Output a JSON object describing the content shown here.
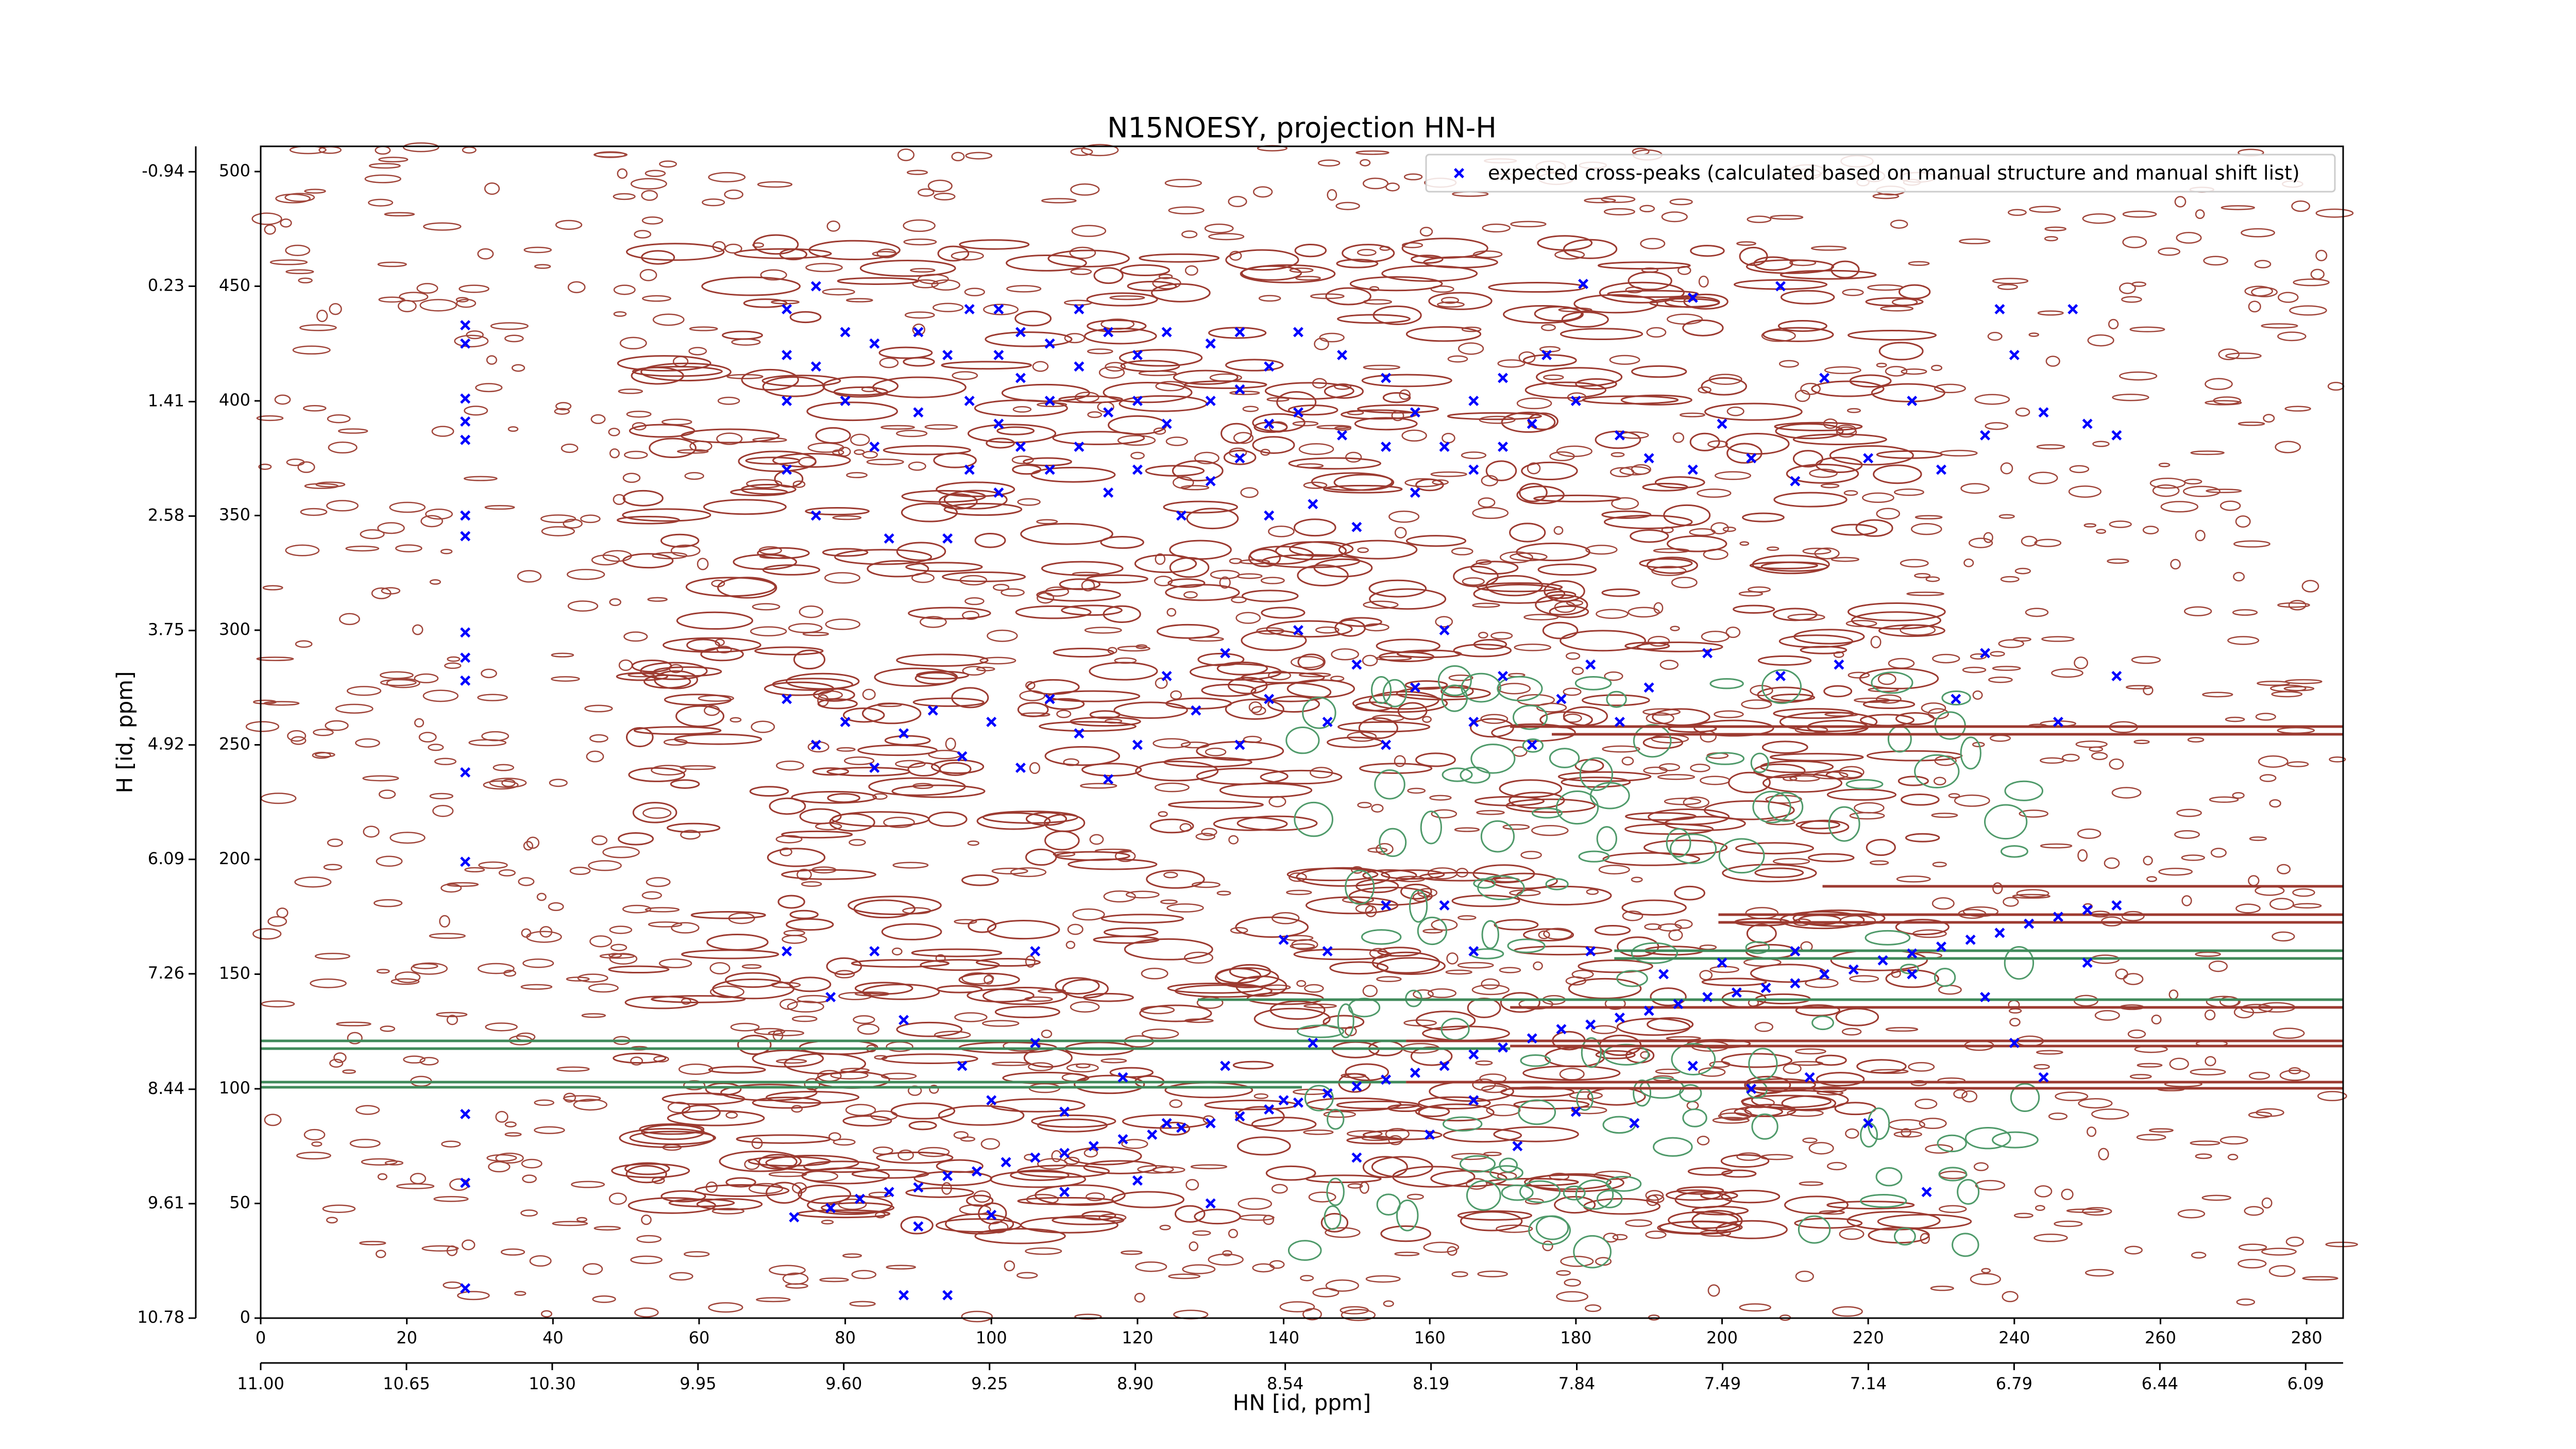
{
  "chart_data": {
    "type": "scatter",
    "title": "N15NOESY, projection HN-H",
    "x_label": "HN [id, ppm]",
    "y_label": "H [id, ppm]",
    "xlim": [
      0,
      285
    ],
    "ylim": [
      0,
      511
    ],
    "xticks": [
      0,
      20,
      40,
      60,
      80,
      100,
      120,
      140,
      160,
      180,
      200,
      220,
      240,
      260,
      280
    ],
    "yticks": [
      0,
      50,
      100,
      150,
      200,
      250,
      300,
      350,
      400,
      450,
      500
    ],
    "x2lim": [
      11.0,
      6.0
    ],
    "x2ticks": [
      {
        "value": 11,
        "label": "11.00"
      },
      10.65,
      {
        "value": 10.3,
        "label": "10.30"
      },
      9.95,
      {
        "value": 9.6,
        "label": "9.60"
      },
      9.25,
      {
        "value": 8.9,
        "label": "8.90"
      },
      8.54,
      8.19,
      7.84,
      7.49,
      7.14,
      6.79,
      6.44,
      6.09
    ],
    "y2lim": [
      10.78,
      -1.2
    ],
    "y2ticks": [
      10.78,
      9.61,
      8.44,
      7.26,
      6.09,
      4.92,
      3.75,
      2.58,
      1.41,
      0.23,
      -0.94
    ],
    "legend": "upper right",
    "series": [
      {
        "name": "expected cross-peaks (calculated based on manual structure and manual shift list)",
        "color": "#0000ff",
        "x": [
          28,
          28,
          28,
          28,
          28,
          28,
          28,
          28,
          28,
          28,
          28,
          28,
          28,
          28,
          28,
          73,
          78,
          82,
          86,
          90,
          94,
          98,
          102,
          106,
          110,
          114,
          118,
          122,
          126,
          130,
          134,
          138,
          142,
          146,
          150,
          154,
          158,
          162,
          166,
          170,
          174,
          178,
          182,
          186,
          190,
          194,
          198,
          202,
          206,
          210,
          214,
          218,
          222,
          226,
          230,
          234,
          238,
          242,
          246,
          250,
          254,
          72,
          72,
          72,
          72,
          76,
          76,
          76,
          80,
          80,
          84,
          84,
          86,
          90,
          90,
          94,
          94,
          97,
          97,
          97,
          101,
          101,
          101,
          101,
          104,
          104,
          104,
          108,
          108,
          108,
          112,
          112,
          112,
          116,
          116,
          116,
          120,
          120,
          120,
          124,
          124,
          126,
          130,
          130,
          130,
          134,
          134,
          134,
          138,
          138,
          138,
          142,
          142,
          144,
          148,
          148,
          150,
          154,
          154,
          158,
          158,
          162,
          166,
          166,
          170,
          170,
          174,
          176,
          180,
          186,
          190,
          196,
          200,
          204,
          210,
          214,
          220,
          226,
          230,
          236,
          240,
          244,
          250,
          254,
          238,
          248,
          208,
          196,
          181,
          72,
          76,
          80,
          84,
          88,
          92,
          96,
          100,
          104,
          108,
          112,
          116,
          120,
          124,
          128,
          132,
          134,
          138,
          142,
          146,
          150,
          154,
          158,
          162,
          166,
          170,
          174,
          178,
          182,
          186,
          190,
          198,
          208,
          216,
          232,
          236,
          246,
          254,
          72,
          78,
          84,
          88,
          96,
          100,
          106,
          110,
          118,
          124,
          132,
          140,
          144,
          150,
          160,
          166,
          172,
          180,
          188,
          196,
          204,
          212,
          226,
          236,
          240,
          244,
          250,
          220,
          228,
          192,
          200,
          210,
          88,
          94,
          182,
          166,
          162,
          140,
          110,
          120,
          130,
          100,
          90,
          106,
          154,
          146
        ],
        "y": [
          433,
          425,
          401,
          391,
          383,
          350,
          341,
          299,
          288,
          278,
          238,
          199,
          89,
          59,
          13,
          44,
          48,
          52,
          55,
          57,
          62,
          64,
          68,
          70,
          72,
          75,
          78,
          80,
          83,
          85,
          88,
          91,
          94,
          98,
          101,
          104,
          107,
          110,
          115,
          118,
          122,
          126,
          128,
          131,
          134,
          137,
          140,
          142,
          144,
          146,
          150,
          152,
          156,
          159,
          162,
          165,
          168,
          172,
          175,
          178,
          180,
          440,
          420,
          400,
          370,
          450,
          415,
          350,
          430,
          400,
          425,
          380,
          340,
          430,
          395,
          420,
          340,
          440,
          400,
          370,
          440,
          420,
          390,
          360,
          430,
          410,
          380,
          425,
          400,
          370,
          440,
          415,
          380,
          430,
          395,
          360,
          420,
          400,
          370,
          430,
          390,
          350,
          425,
          400,
          365,
          430,
          405,
          375,
          415,
          390,
          350,
          430,
          395,
          355,
          420,
          385,
          345,
          410,
          380,
          395,
          360,
          380,
          400,
          370,
          410,
          380,
          390,
          420,
          400,
          385,
          375,
          370,
          390,
          375,
          365,
          410,
          375,
          400,
          370,
          385,
          420,
          395,
          390,
          385,
          440,
          440,
          450,
          445,
          451,
          270,
          250,
          260,
          240,
          255,
          265,
          245,
          260,
          240,
          270,
          255,
          235,
          250,
          280,
          265,
          290,
          250,
          270,
          300,
          260,
          285,
          250,
          275,
          300,
          260,
          280,
          250,
          270,
          285,
          260,
          275,
          290,
          280,
          285,
          270,
          290,
          260,
          280,
          160,
          140,
          160,
          130,
          110,
          95,
          120,
          90,
          105,
          85,
          110,
          95,
          120,
          70,
          80,
          95,
          75,
          90,
          85,
          110,
          100,
          105,
          150,
          140,
          120,
          105,
          155,
          85,
          55,
          150,
          155,
          160,
          10,
          10,
          160,
          160,
          180,
          165,
          55,
          60,
          50,
          45,
          40,
          160,
          180,
          160
        ]
      }
    ]
  }
}
